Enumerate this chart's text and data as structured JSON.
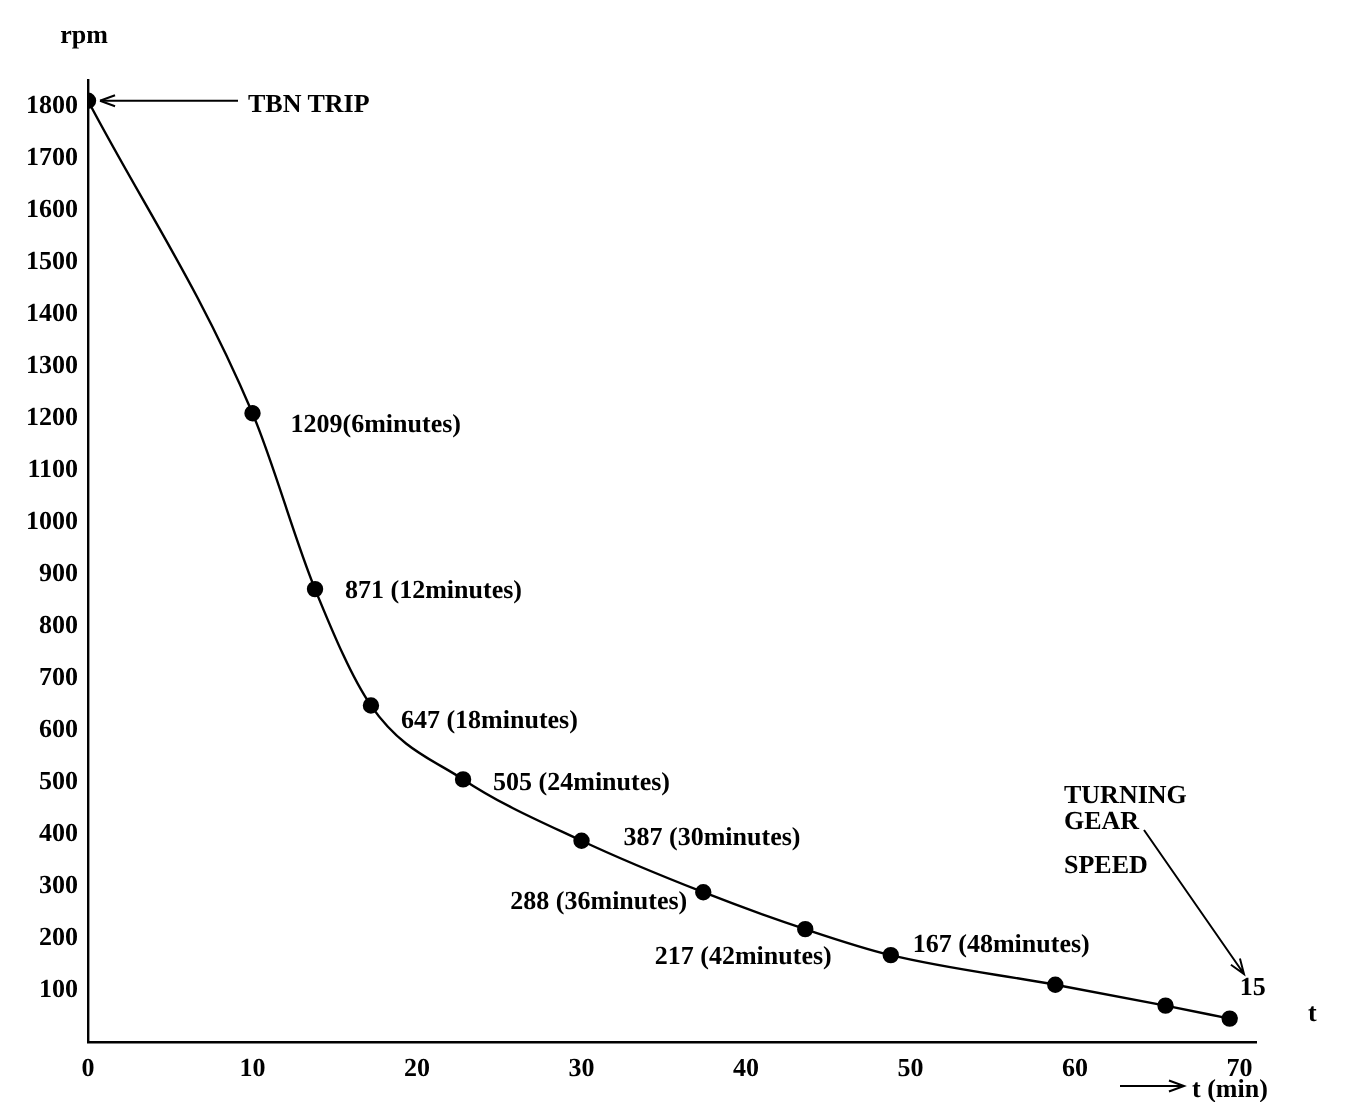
{
  "chart_data": {
    "type": "line",
    "ylabel": "rpm",
    "xlabel": "t (min)",
    "x": [
      0,
      10,
      13.8,
      17.2,
      22.8,
      30,
      37.4,
      43.6,
      48.8,
      58.8,
      65.5,
      69.4
    ],
    "series": [
      {
        "color": "#000000",
        "values": [
          1810,
          1209,
          871,
          647,
          505,
          387,
          288,
          217,
          167,
          110,
          70,
          45
        ]
      }
    ],
    "xlim": [
      0,
      71
    ],
    "xticks": [
      0,
      10,
      20,
      30,
      40,
      50,
      60,
      70
    ],
    "ylim": [
      0,
      1850
    ],
    "yticks": [
      100,
      200,
      300,
      400,
      500,
      600,
      700,
      800,
      900,
      1000,
      1100,
      1200,
      1300,
      1400,
      1500,
      1600,
      1700,
      1800
    ],
    "grid": false,
    "legend": false,
    "marker": "circle",
    "line_style": "solid",
    "annotations": [
      {
        "text": "TBN TRIP",
        "x": 0,
        "y": 1810
      },
      {
        "text": "1209(6minutes)",
        "x": 10,
        "y": 1209
      },
      {
        "text": "871 (12minutes)",
        "x": 13.8,
        "y": 871
      },
      {
        "text": "647 (18minutes)",
        "x": 17.2,
        "y": 647
      },
      {
        "text": "505 (24minutes)",
        "x": 22.8,
        "y": 505
      },
      {
        "text": "387 (30minutes)",
        "x": 30,
        "y": 387
      },
      {
        "text": "288 (36minutes)",
        "x": 37.4,
        "y": 288
      },
      {
        "text": "217 (42minutes)",
        "x": 43.6,
        "y": 217
      },
      {
        "text": "167 (48minutes)",
        "x": 48.8,
        "y": 167
      },
      "TURNING GEAR SPEED",
      {
        "text": "15",
        "x": 69.4,
        "y": 45
      },
      "t"
    ]
  }
}
